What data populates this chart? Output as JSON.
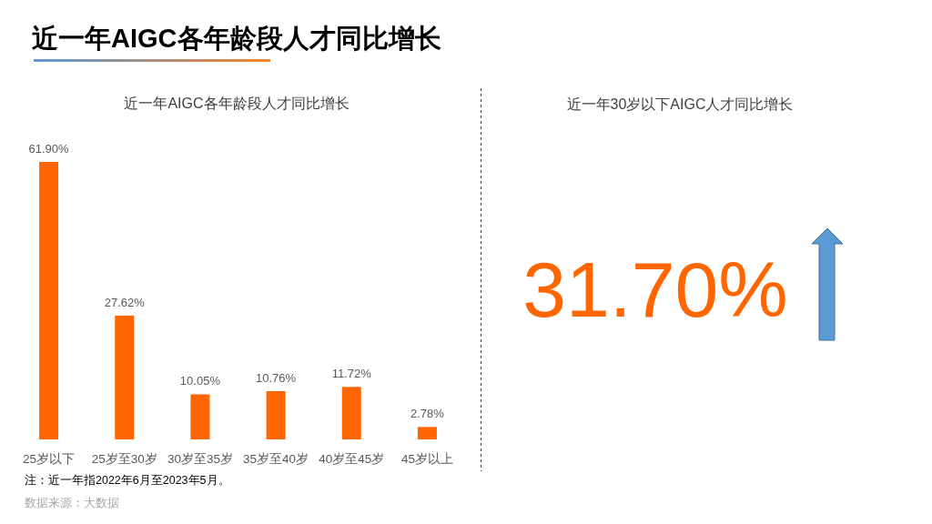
{
  "chart_data": [
    {
      "type": "bar",
      "title": "近一年AIGC各年龄段人才同比增长",
      "subtitle": "近一年AIGC各年龄段人才同比增长",
      "categories": [
        "25岁以下",
        "25岁至30岁",
        "30岁至35岁",
        "35岁至40岁",
        "40岁至45岁",
        "45岁以上"
      ],
      "values": [
        61.9,
        27.62,
        10.05,
        10.76,
        11.72,
        2.78
      ],
      "value_labels": [
        "61.90%",
        "27.62%",
        "10.05%",
        "10.76%",
        "11.72%",
        "2.78%"
      ],
      "color": "#ff6600",
      "annotations": [
        "注：近一年指2022年6月至2023年5月。",
        "数据来源：大数据"
      ]
    },
    {
      "type": "other",
      "title": "近一年30岁以下AIGC人才同比增长",
      "annotations": [
        "31.70%"
      ],
      "color": "#ff6600"
    }
  ]
}
